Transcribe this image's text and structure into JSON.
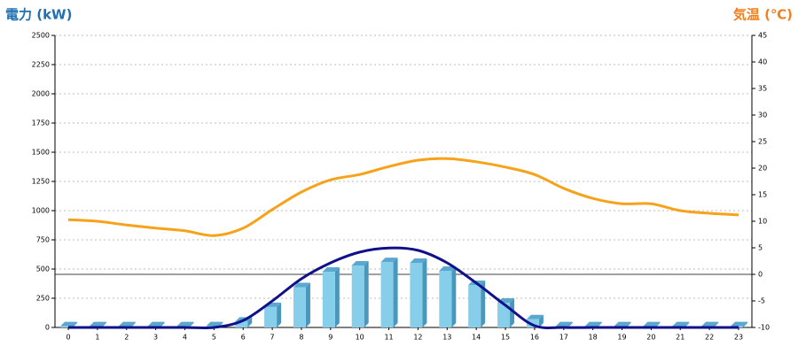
{
  "chart_data": {
    "type": "bar",
    "y_label": "電力 (kW)",
    "y2_label": "気温 (℃)",
    "categories": [
      "0",
      "1",
      "2",
      "3",
      "4",
      "5",
      "6",
      "7",
      "8",
      "9",
      "10",
      "11",
      "12",
      "13",
      "14",
      "15",
      "16",
      "17",
      "18",
      "19",
      "20",
      "21",
      "22",
      "23"
    ],
    "series": [
      {
        "type": "bar",
        "color": "#87ceeb",
        "values": [
          10,
          10,
          10,
          10,
          10,
          10,
          50,
          175,
          345,
          477,
          530,
          560,
          553,
          485,
          364,
          212,
          70,
          10,
          10,
          10,
          10,
          10,
          10,
          10
        ]
      },
      {
        "type": "line",
        "color": "#10108a",
        "values": [
          0,
          0,
          0,
          0,
          0,
          0,
          60,
          227,
          417,
          553,
          645,
          680,
          660,
          553,
          380,
          190,
          15,
          0,
          0,
          0,
          0,
          0,
          0,
          0
        ]
      },
      {
        "type": "line",
        "color": "#f7a21b",
        "axis": "y2",
        "values": [
          10.3,
          10,
          9.3,
          8.7,
          8.2,
          7.3,
          8.7,
          12.2,
          15.5,
          17.8,
          18.8,
          20.3,
          21.5,
          21.8,
          21.2,
          20.2,
          18.8,
          16.2,
          14.3,
          13.3,
          13.3,
          12,
          11.5,
          11.2
        ]
      }
    ],
    "ylim": [
      0,
      2500
    ],
    "yticks": [
      0,
      250,
      500,
      750,
      1000,
      1250,
      1500,
      1750,
      2000,
      2250,
      2500
    ],
    "y2lim": [
      -10,
      45
    ],
    "y2ticks": [
      -10,
      -5,
      0,
      5,
      10,
      15,
      20,
      25,
      30,
      35,
      40,
      45
    ],
    "grid": true
  }
}
